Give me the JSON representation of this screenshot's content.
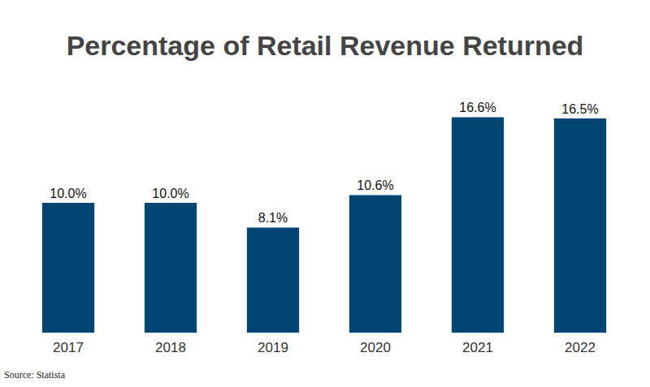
{
  "chart_data": {
    "type": "bar",
    "title": "Percentage of Retail Revenue Returned",
    "source": "Source: Statista",
    "categories": [
      "2017",
      "2018",
      "2019",
      "2020",
      "2021",
      "2022"
    ],
    "values": [
      10.0,
      10.0,
      8.1,
      10.6,
      16.6,
      16.5
    ],
    "value_labels": [
      "10.0%",
      "10.0%",
      "8.1%",
      "10.6%",
      "16.6%",
      "16.5%"
    ],
    "color": "#004573",
    "ylim": [
      0,
      18
    ],
    "grid": false,
    "data_labels": true,
    "tick_labels": "x"
  }
}
